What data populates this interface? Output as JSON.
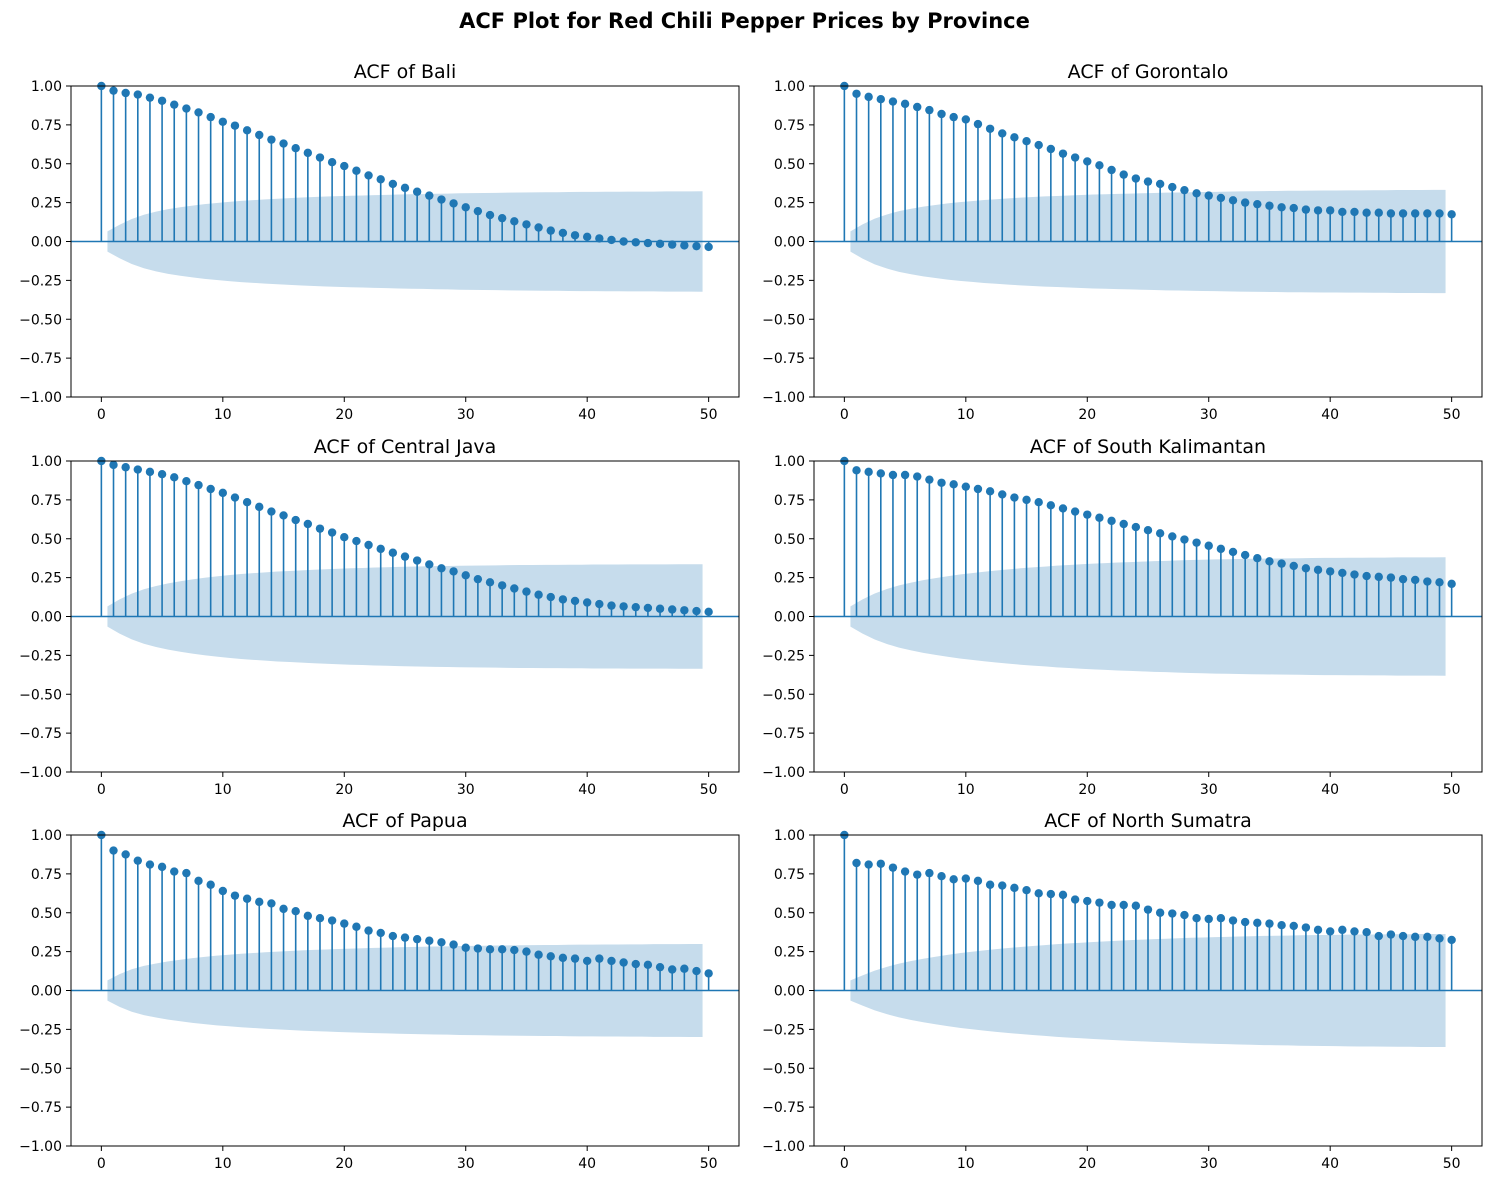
{
  "figure": {
    "title": "ACF Plot for Red Chili Pepper Prices by Province"
  },
  "style": {
    "stem_color": "#1f77b4",
    "band_color": "#c6dcec",
    "axis_color": "#000000"
  },
  "chart_data": [
    {
      "type": "stem",
      "title": "ACF of Bali",
      "xlim": [
        -2.5,
        52.5
      ],
      "ylim": [
        -1.0,
        1.0
      ],
      "x_ticks": [
        0,
        10,
        20,
        30,
        40,
        50
      ],
      "y_ticks": [
        -1.0,
        -0.75,
        -0.5,
        -0.25,
        0.0,
        0.25,
        0.5,
        0.75,
        1.0
      ],
      "x_tick_labels": [
        "0",
        "10",
        "20",
        "30",
        "40",
        "50"
      ],
      "y_tick_labels": [
        "−1.00",
        "−0.75",
        "−0.50",
        "−0.25",
        "0.00",
        "0.25",
        "0.50",
        "0.75",
        "1.00"
      ],
      "lags": [
        0,
        1,
        2,
        3,
        4,
        5,
        6,
        7,
        8,
        9,
        10,
        11,
        12,
        13,
        14,
        15,
        16,
        17,
        18,
        19,
        20,
        21,
        22,
        23,
        24,
        25,
        26,
        27,
        28,
        29,
        30,
        31,
        32,
        33,
        34,
        35,
        36,
        37,
        38,
        39,
        40,
        41,
        42,
        43,
        44,
        45,
        46,
        47,
        48,
        49,
        50
      ],
      "acf": [
        1.0,
        0.97,
        0.955,
        0.945,
        0.925,
        0.905,
        0.88,
        0.855,
        0.83,
        0.8,
        0.77,
        0.745,
        0.715,
        0.685,
        0.655,
        0.63,
        0.6,
        0.57,
        0.54,
        0.51,
        0.485,
        0.455,
        0.425,
        0.4,
        0.37,
        0.345,
        0.32,
        0.295,
        0.27,
        0.245,
        0.22,
        0.195,
        0.17,
        0.15,
        0.13,
        0.11,
        0.09,
        0.07,
        0.055,
        0.04,
        0.03,
        0.02,
        0.01,
        0.0,
        -0.005,
        -0.01,
        -0.015,
        -0.02,
        -0.025,
        -0.03,
        -0.035
      ],
      "conf_upper": [
        0.065,
        0.108,
        0.145,
        0.172,
        0.192,
        0.208,
        0.22,
        0.231,
        0.24,
        0.248,
        0.255,
        0.261,
        0.266,
        0.271,
        0.275,
        0.279,
        0.283,
        0.286,
        0.289,
        0.292,
        0.294,
        0.296,
        0.298,
        0.3,
        0.302,
        0.304,
        0.305,
        0.307,
        0.308,
        0.31,
        0.311,
        0.312,
        0.313,
        0.314,
        0.315,
        0.316,
        0.317,
        0.317,
        0.318,
        0.319,
        0.319,
        0.32,
        0.32,
        0.321,
        0.321,
        0.321,
        0.322,
        0.322,
        0.322,
        0.323
      ]
    },
    {
      "type": "stem",
      "title": "ACF of Gorontalo",
      "xlim": [
        -2.5,
        52.5
      ],
      "ylim": [
        -1.0,
        1.0
      ],
      "x_ticks": [
        0,
        10,
        20,
        30,
        40,
        50
      ],
      "y_ticks": [
        -1.0,
        -0.75,
        -0.5,
        -0.25,
        0.0,
        0.25,
        0.5,
        0.75,
        1.0
      ],
      "x_tick_labels": [
        "0",
        "10",
        "20",
        "30",
        "40",
        "50"
      ],
      "y_tick_labels": [
        "−1.00",
        "−0.75",
        "−0.50",
        "−0.25",
        "0.00",
        "0.25",
        "0.50",
        "0.75",
        "1.00"
      ],
      "lags": [
        0,
        1,
        2,
        3,
        4,
        5,
        6,
        7,
        8,
        9,
        10,
        11,
        12,
        13,
        14,
        15,
        16,
        17,
        18,
        19,
        20,
        21,
        22,
        23,
        24,
        25,
        26,
        27,
        28,
        29,
        30,
        31,
        32,
        33,
        34,
        35,
        36,
        37,
        38,
        39,
        40,
        41,
        42,
        43,
        44,
        45,
        46,
        47,
        48,
        49,
        50
      ],
      "acf": [
        1.0,
        0.95,
        0.93,
        0.915,
        0.9,
        0.885,
        0.865,
        0.845,
        0.82,
        0.8,
        0.785,
        0.755,
        0.725,
        0.695,
        0.67,
        0.645,
        0.62,
        0.595,
        0.565,
        0.54,
        0.515,
        0.49,
        0.46,
        0.43,
        0.405,
        0.385,
        0.37,
        0.35,
        0.33,
        0.31,
        0.295,
        0.28,
        0.265,
        0.25,
        0.24,
        0.23,
        0.22,
        0.215,
        0.205,
        0.2,
        0.2,
        0.19,
        0.19,
        0.185,
        0.185,
        0.18,
        0.18,
        0.18,
        0.18,
        0.18,
        0.175
      ],
      "conf_upper": [
        0.065,
        0.11,
        0.147,
        0.174,
        0.195,
        0.211,
        0.224,
        0.235,
        0.245,
        0.253,
        0.26,
        0.267,
        0.272,
        0.277,
        0.282,
        0.286,
        0.29,
        0.293,
        0.296,
        0.299,
        0.302,
        0.304,
        0.306,
        0.308,
        0.31,
        0.312,
        0.314,
        0.315,
        0.317,
        0.318,
        0.319,
        0.321,
        0.322,
        0.323,
        0.324,
        0.325,
        0.326,
        0.326,
        0.327,
        0.328,
        0.328,
        0.329,
        0.329,
        0.33,
        0.33,
        0.331,
        0.331,
        0.331,
        0.332,
        0.332
      ]
    },
    {
      "type": "stem",
      "title": "ACF of Central Java",
      "xlim": [
        -2.5,
        52.5
      ],
      "ylim": [
        -1.0,
        1.0
      ],
      "x_ticks": [
        0,
        10,
        20,
        30,
        40,
        50
      ],
      "y_ticks": [
        -1.0,
        -0.75,
        -0.5,
        -0.25,
        0.0,
        0.25,
        0.5,
        0.75,
        1.0
      ],
      "x_tick_labels": [
        "0",
        "10",
        "20",
        "30",
        "40",
        "50"
      ],
      "y_tick_labels": [
        "−1.00",
        "−0.75",
        "−0.50",
        "−0.25",
        "0.00",
        "0.25",
        "0.50",
        "0.75",
        "1.00"
      ],
      "lags": [
        0,
        1,
        2,
        3,
        4,
        5,
        6,
        7,
        8,
        9,
        10,
        11,
        12,
        13,
        14,
        15,
        16,
        17,
        18,
        19,
        20,
        21,
        22,
        23,
        24,
        25,
        26,
        27,
        28,
        29,
        30,
        31,
        32,
        33,
        34,
        35,
        36,
        37,
        38,
        39,
        40,
        41,
        42,
        43,
        44,
        45,
        46,
        47,
        48,
        49,
        50
      ],
      "acf": [
        1.0,
        0.975,
        0.96,
        0.945,
        0.93,
        0.915,
        0.895,
        0.87,
        0.845,
        0.82,
        0.795,
        0.765,
        0.735,
        0.705,
        0.675,
        0.65,
        0.62,
        0.595,
        0.565,
        0.54,
        0.51,
        0.485,
        0.46,
        0.435,
        0.41,
        0.385,
        0.36,
        0.335,
        0.31,
        0.29,
        0.265,
        0.24,
        0.22,
        0.2,
        0.18,
        0.16,
        0.14,
        0.125,
        0.11,
        0.1,
        0.09,
        0.08,
        0.07,
        0.065,
        0.06,
        0.055,
        0.05,
        0.045,
        0.04,
        0.035,
        0.03
      ],
      "conf_upper": [
        0.065,
        0.11,
        0.147,
        0.175,
        0.196,
        0.213,
        0.227,
        0.239,
        0.249,
        0.258,
        0.266,
        0.273,
        0.279,
        0.284,
        0.289,
        0.293,
        0.297,
        0.301,
        0.304,
        0.307,
        0.31,
        0.312,
        0.315,
        0.317,
        0.319,
        0.321,
        0.322,
        0.324,
        0.325,
        0.326,
        0.327,
        0.328,
        0.329,
        0.33,
        0.331,
        0.331,
        0.332,
        0.332,
        0.333,
        0.333,
        0.334,
        0.334,
        0.334,
        0.335,
        0.335,
        0.335,
        0.335,
        0.336,
        0.336,
        0.336
      ]
    },
    {
      "type": "stem",
      "title": "ACF of South Kalimantan",
      "xlim": [
        -2.5,
        52.5
      ],
      "ylim": [
        -1.0,
        1.0
      ],
      "x_ticks": [
        0,
        10,
        20,
        30,
        40,
        50
      ],
      "y_ticks": [
        -1.0,
        -0.75,
        -0.5,
        -0.25,
        0.0,
        0.25,
        0.5,
        0.75,
        1.0
      ],
      "x_tick_labels": [
        "0",
        "10",
        "20",
        "30",
        "40",
        "50"
      ],
      "y_tick_labels": [
        "−1.00",
        "−0.75",
        "−0.50",
        "−0.25",
        "0.00",
        "0.25",
        "0.50",
        "0.75",
        "1.00"
      ],
      "lags": [
        0,
        1,
        2,
        3,
        4,
        5,
        6,
        7,
        8,
        9,
        10,
        11,
        12,
        13,
        14,
        15,
        16,
        17,
        18,
        19,
        20,
        21,
        22,
        23,
        24,
        25,
        26,
        27,
        28,
        29,
        30,
        31,
        32,
        33,
        34,
        35,
        36,
        37,
        38,
        39,
        40,
        41,
        42,
        43,
        44,
        45,
        46,
        47,
        48,
        49,
        50
      ],
      "acf": [
        1.0,
        0.94,
        0.93,
        0.92,
        0.91,
        0.91,
        0.9,
        0.88,
        0.86,
        0.85,
        0.835,
        0.82,
        0.805,
        0.785,
        0.765,
        0.75,
        0.735,
        0.715,
        0.695,
        0.675,
        0.655,
        0.635,
        0.615,
        0.595,
        0.575,
        0.555,
        0.535,
        0.515,
        0.495,
        0.475,
        0.455,
        0.435,
        0.415,
        0.395,
        0.375,
        0.355,
        0.34,
        0.325,
        0.31,
        0.3,
        0.29,
        0.28,
        0.27,
        0.26,
        0.255,
        0.25,
        0.24,
        0.235,
        0.225,
        0.22,
        0.21
      ],
      "conf_upper": [
        0.065,
        0.11,
        0.148,
        0.177,
        0.2,
        0.218,
        0.234,
        0.247,
        0.259,
        0.27,
        0.279,
        0.288,
        0.296,
        0.303,
        0.31,
        0.316,
        0.321,
        0.327,
        0.331,
        0.336,
        0.34,
        0.343,
        0.347,
        0.35,
        0.353,
        0.356,
        0.358,
        0.361,
        0.363,
        0.365,
        0.367,
        0.368,
        0.37,
        0.371,
        0.372,
        0.373,
        0.374,
        0.375,
        0.376,
        0.377,
        0.377,
        0.378,
        0.378,
        0.379,
        0.379,
        0.38,
        0.38,
        0.38,
        0.38,
        0.381
      ]
    },
    {
      "type": "stem",
      "title": "ACF of Papua",
      "xlim": [
        -2.5,
        52.5
      ],
      "ylim": [
        -1.0,
        1.0
      ],
      "x_ticks": [
        0,
        10,
        20,
        30,
        40,
        50
      ],
      "y_ticks": [
        -1.0,
        -0.75,
        -0.5,
        -0.25,
        0.0,
        0.25,
        0.5,
        0.75,
        1.0
      ],
      "x_tick_labels": [
        "0",
        "10",
        "20",
        "30",
        "40",
        "50"
      ],
      "y_tick_labels": [
        "−1.00",
        "−0.75",
        "−0.50",
        "−0.25",
        "0.00",
        "0.25",
        "0.50",
        "0.75",
        "1.00"
      ],
      "lags": [
        0,
        1,
        2,
        3,
        4,
        5,
        6,
        7,
        8,
        9,
        10,
        11,
        12,
        13,
        14,
        15,
        16,
        17,
        18,
        19,
        20,
        21,
        22,
        23,
        24,
        25,
        26,
        27,
        28,
        29,
        30,
        31,
        32,
        33,
        34,
        35,
        36,
        37,
        38,
        39,
        40,
        41,
        42,
        43,
        44,
        45,
        46,
        47,
        48,
        49,
        50
      ],
      "acf": [
        1.0,
        0.9,
        0.875,
        0.835,
        0.81,
        0.795,
        0.765,
        0.755,
        0.705,
        0.68,
        0.64,
        0.61,
        0.59,
        0.57,
        0.56,
        0.525,
        0.51,
        0.48,
        0.465,
        0.45,
        0.43,
        0.41,
        0.385,
        0.37,
        0.35,
        0.34,
        0.33,
        0.32,
        0.31,
        0.295,
        0.275,
        0.27,
        0.265,
        0.265,
        0.26,
        0.25,
        0.23,
        0.22,
        0.21,
        0.205,
        0.19,
        0.205,
        0.19,
        0.18,
        0.17,
        0.165,
        0.15,
        0.135,
        0.14,
        0.125,
        0.11
      ],
      "conf_upper": [
        0.065,
        0.105,
        0.137,
        0.158,
        0.174,
        0.187,
        0.198,
        0.208,
        0.216,
        0.224,
        0.23,
        0.236,
        0.241,
        0.246,
        0.25,
        0.254,
        0.258,
        0.261,
        0.264,
        0.267,
        0.269,
        0.272,
        0.274,
        0.276,
        0.278,
        0.28,
        0.281,
        0.283,
        0.284,
        0.286,
        0.287,
        0.288,
        0.289,
        0.29,
        0.291,
        0.292,
        0.293,
        0.293,
        0.294,
        0.295,
        0.295,
        0.296,
        0.296,
        0.297,
        0.297,
        0.298,
        0.298,
        0.298,
        0.299,
        0.299
      ]
    },
    {
      "type": "stem",
      "title": "ACF of North Sumatra",
      "xlim": [
        -2.5,
        52.5
      ],
      "ylim": [
        -1.0,
        1.0
      ],
      "x_ticks": [
        0,
        10,
        20,
        30,
        40,
        50
      ],
      "y_ticks": [
        -1.0,
        -0.75,
        -0.5,
        -0.25,
        0.0,
        0.25,
        0.5,
        0.75,
        1.0
      ],
      "x_tick_labels": [
        "0",
        "10",
        "20",
        "30",
        "40",
        "50"
      ],
      "y_tick_labels": [
        "−1.00",
        "−0.75",
        "−0.50",
        "−0.25",
        "0.00",
        "0.25",
        "0.50",
        "0.75",
        "1.00"
      ],
      "lags": [
        0,
        1,
        2,
        3,
        4,
        5,
        6,
        7,
        8,
        9,
        10,
        11,
        12,
        13,
        14,
        15,
        16,
        17,
        18,
        19,
        20,
        21,
        22,
        23,
        24,
        25,
        26,
        27,
        28,
        29,
        30,
        31,
        32,
        33,
        34,
        35,
        36,
        37,
        38,
        39,
        40,
        41,
        42,
        43,
        44,
        45,
        46,
        47,
        48,
        49,
        50
      ],
      "acf": [
        1.0,
        0.82,
        0.81,
        0.815,
        0.79,
        0.765,
        0.745,
        0.755,
        0.735,
        0.715,
        0.72,
        0.705,
        0.68,
        0.675,
        0.66,
        0.645,
        0.625,
        0.62,
        0.615,
        0.585,
        0.575,
        0.565,
        0.55,
        0.55,
        0.545,
        0.52,
        0.5,
        0.495,
        0.485,
        0.465,
        0.46,
        0.465,
        0.45,
        0.44,
        0.435,
        0.43,
        0.42,
        0.415,
        0.405,
        0.39,
        0.38,
        0.39,
        0.38,
        0.375,
        0.35,
        0.36,
        0.35,
        0.345,
        0.345,
        0.335,
        0.325
      ],
      "conf_upper": [
        0.065,
        0.097,
        0.128,
        0.152,
        0.173,
        0.19,
        0.204,
        0.217,
        0.229,
        0.24,
        0.249,
        0.258,
        0.266,
        0.273,
        0.28,
        0.286,
        0.292,
        0.298,
        0.303,
        0.307,
        0.312,
        0.316,
        0.32,
        0.324,
        0.327,
        0.33,
        0.333,
        0.336,
        0.339,
        0.341,
        0.343,
        0.345,
        0.347,
        0.349,
        0.351,
        0.352,
        0.353,
        0.355,
        0.356,
        0.357,
        0.358,
        0.359,
        0.36,
        0.36,
        0.361,
        0.362,
        0.362,
        0.363,
        0.363,
        0.363
      ]
    }
  ]
}
